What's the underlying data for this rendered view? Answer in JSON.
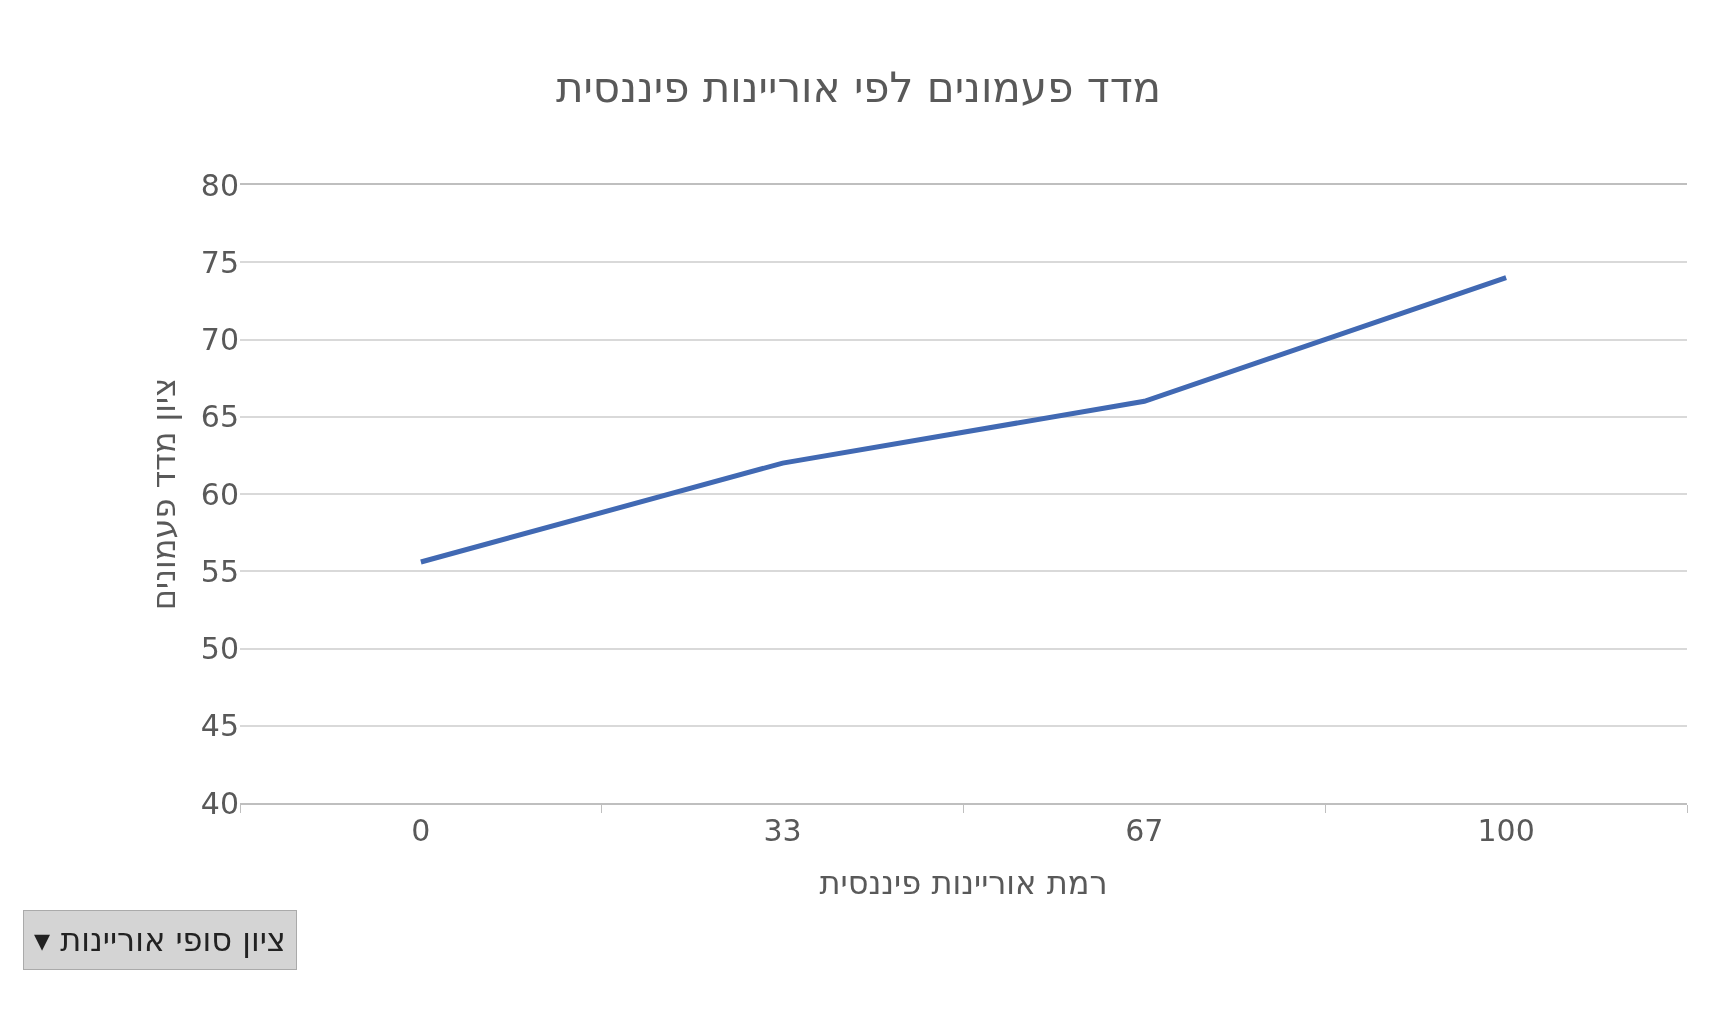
{
  "chart_data": {
    "type": "line",
    "title": "מדד פעמונים לפי אוריינות פיננסית",
    "xlabel": "רמת אוריינות פיננסית",
    "ylabel": "ציון מדד פעמונים",
    "categories": [
      "0",
      "33",
      "67",
      "100"
    ],
    "series": [
      {
        "color": "#4169b3",
        "values": [
          55.6,
          62,
          66,
          74
        ]
      }
    ],
    "ylim": [
      40,
      80
    ],
    "yticks": [
      40,
      45,
      50,
      55,
      60,
      65,
      70,
      75,
      80
    ],
    "grid": "y",
    "marker": "none",
    "line_style": "solid",
    "annotations": [
      "▾ ציון סופי אוריינות"
    ]
  }
}
